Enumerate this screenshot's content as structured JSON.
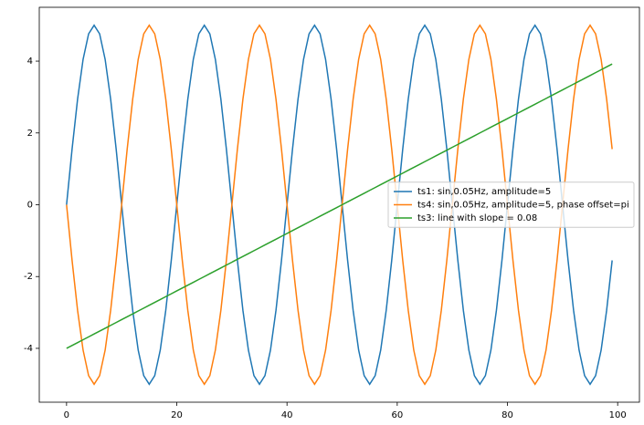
{
  "chart_data": {
    "type": "line",
    "x": [
      0,
      1,
      2,
      3,
      4,
      5,
      6,
      7,
      8,
      9,
      10,
      11,
      12,
      13,
      14,
      15,
      16,
      17,
      18,
      19,
      20,
      21,
      22,
      23,
      24,
      25,
      26,
      27,
      28,
      29,
      30,
      31,
      32,
      33,
      34,
      35,
      36,
      37,
      38,
      39,
      40,
      41,
      42,
      43,
      44,
      45,
      46,
      47,
      48,
      49,
      50,
      51,
      52,
      53,
      54,
      55,
      56,
      57,
      58,
      59,
      60,
      61,
      62,
      63,
      64,
      65,
      66,
      67,
      68,
      69,
      70,
      71,
      72,
      73,
      74,
      75,
      76,
      77,
      78,
      79,
      80,
      81,
      82,
      83,
      84,
      85,
      86,
      87,
      88,
      89,
      90,
      91,
      92,
      93,
      94,
      95,
      96,
      97,
      98,
      99
    ],
    "series": [
      {
        "name": "ts1: sin,0.05Hz, amplitude=5",
        "color": "#1f77b4",
        "values": [
          0,
          1.55,
          2.94,
          4.05,
          4.76,
          5,
          4.76,
          4.05,
          2.94,
          1.55,
          0,
          -1.55,
          -2.94,
          -4.05,
          -4.76,
          -5,
          -4.76,
          -4.05,
          -2.94,
          -1.55,
          0,
          1.55,
          2.94,
          4.05,
          4.76,
          5,
          4.76,
          4.05,
          2.94,
          1.55,
          0,
          -1.55,
          -2.94,
          -4.05,
          -4.76,
          -5,
          -4.76,
          -4.05,
          -2.94,
          -1.55,
          0,
          1.55,
          2.94,
          4.05,
          4.76,
          5,
          4.76,
          4.05,
          2.94,
          1.55,
          0,
          -1.55,
          -2.94,
          -4.05,
          -4.76,
          -5,
          -4.76,
          -4.05,
          -2.94,
          -1.55,
          0,
          1.55,
          2.94,
          4.05,
          4.76,
          5,
          4.76,
          4.05,
          2.94,
          1.55,
          0,
          -1.55,
          -2.94,
          -4.05,
          -4.76,
          -5,
          -4.76,
          -4.05,
          -2.94,
          -1.55,
          0,
          1.55,
          2.94,
          4.05,
          4.76,
          5,
          4.76,
          4.05,
          2.94,
          1.55,
          0,
          -1.55,
          -2.94,
          -4.05,
          -4.76,
          -5,
          -4.76,
          -4.05,
          -2.94,
          -1.55
        ]
      },
      {
        "name": "ts4: sin,0.05Hz, amplitude=5, phase offset=pi",
        "color": "#ff7f0e",
        "values": [
          0,
          -1.55,
          -2.94,
          -4.05,
          -4.76,
          -5,
          -4.76,
          -4.05,
          -2.94,
          -1.55,
          0,
          1.55,
          2.94,
          4.05,
          4.76,
          5,
          4.76,
          4.05,
          2.94,
          1.55,
          0,
          -1.55,
          -2.94,
          -4.05,
          -4.76,
          -5,
          -4.76,
          -4.05,
          -2.94,
          -1.55,
          0,
          1.55,
          2.94,
          4.05,
          4.76,
          5,
          4.76,
          4.05,
          2.94,
          1.55,
          0,
          -1.55,
          -2.94,
          -4.05,
          -4.76,
          -5,
          -4.76,
          -4.05,
          -2.94,
          -1.55,
          0,
          1.55,
          2.94,
          4.05,
          4.76,
          5,
          4.76,
          4.05,
          2.94,
          1.55,
          0,
          -1.55,
          -2.94,
          -4.05,
          -4.76,
          -5,
          -4.76,
          -4.05,
          -2.94,
          -1.55,
          0,
          1.55,
          2.94,
          4.05,
          4.76,
          5,
          4.76,
          4.05,
          2.94,
          1.55,
          0,
          -1.55,
          -2.94,
          -4.05,
          -4.76,
          -5,
          -4.76,
          -4.05,
          -2.94,
          -1.55,
          0,
          1.55,
          2.94,
          4.05,
          4.76,
          5,
          4.76,
          4.05,
          2.94,
          1.55
        ]
      },
      {
        "name": "ts3: line with slope = 0.08",
        "color": "#2ca02c",
        "values": [
          -4,
          -3.92,
          -3.84,
          -3.76,
          -3.68,
          -3.6,
          -3.52,
          -3.44,
          -3.36,
          -3.28,
          -3.2,
          -3.12,
          -3.04,
          -2.96,
          -2.88,
          -2.8,
          -2.72,
          -2.64,
          -2.56,
          -2.48,
          -2.4,
          -2.32,
          -2.24,
          -2.16,
          -2.08,
          -2,
          -1.92,
          -1.84,
          -1.76,
          -1.68,
          -1.6,
          -1.52,
          -1.44,
          -1.36,
          -1.28,
          -1.2,
          -1.12,
          -1.04,
          -0.96,
          -0.88,
          -0.8,
          -0.72,
          -0.64,
          -0.56,
          -0.48,
          -0.4,
          -0.32,
          -0.24,
          -0.16,
          -0.08,
          0,
          0.08,
          0.16,
          0.24,
          0.32,
          0.4,
          0.48,
          0.56,
          0.64,
          0.72,
          0.8,
          0.88,
          0.96,
          1.04,
          1.12,
          1.2,
          1.28,
          1.36,
          1.44,
          1.52,
          1.6,
          1.68,
          1.76,
          1.84,
          1.92,
          2,
          2.08,
          2.16,
          2.24,
          2.32,
          2.4,
          2.48,
          2.56,
          2.64,
          2.72,
          2.8,
          2.88,
          2.96,
          3.04,
          3.12,
          3.2,
          3.28,
          3.36,
          3.44,
          3.52,
          3.6,
          3.68,
          3.76,
          3.84,
          3.92
        ]
      }
    ],
    "xlim": [
      -4.95,
      103.95
    ],
    "xticks": [
      0,
      20,
      40,
      60,
      80,
      100
    ],
    "ylim": [
      -5.5,
      5.5
    ],
    "yticks": [
      -4,
      -2,
      0,
      2,
      4
    ],
    "grid": false,
    "legend": "center right"
  }
}
